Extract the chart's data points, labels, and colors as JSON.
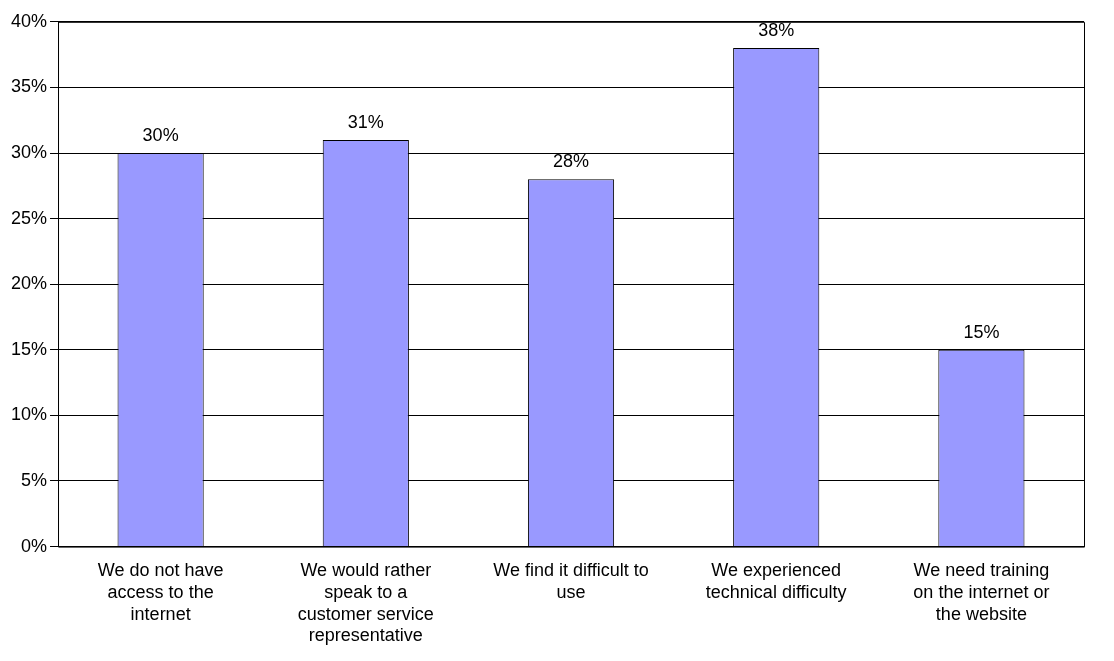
{
  "chart_data": {
    "type": "bar",
    "categories": [
      "We do not have access to the internet",
      "We would rather speak to a customer service representative",
      "We find it difficult to use",
      "We experienced technical difficulty",
      "We need training on the internet or the website"
    ],
    "values": [
      30,
      31,
      28,
      38,
      15
    ],
    "value_labels": [
      "30%",
      "31%",
      "28%",
      "38%",
      "15%"
    ],
    "color": "#9999ff",
    "ylim": [
      0,
      40
    ],
    "yticks": [
      {
        "value": 0,
        "label": "0%"
      },
      {
        "value": 5,
        "label": "5%"
      },
      {
        "value": 10,
        "label": "10%"
      },
      {
        "value": 15,
        "label": "15%"
      },
      {
        "value": 20,
        "label": "20%"
      },
      {
        "value": 25,
        "label": "25%"
      },
      {
        "value": 30,
        "label": "30%"
      },
      {
        "value": 35,
        "label": "35%"
      },
      {
        "value": 40,
        "label": "40%"
      }
    ],
    "grid": "y",
    "legend": false
  }
}
